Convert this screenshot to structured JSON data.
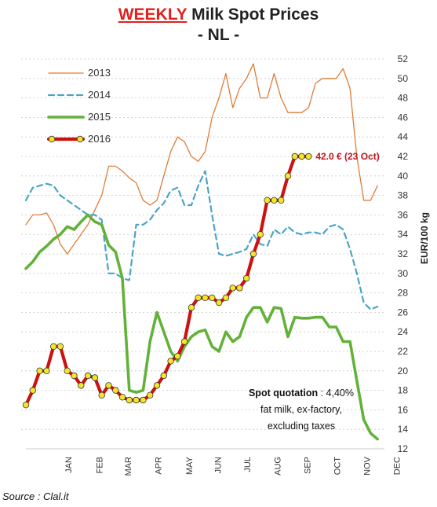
{
  "title": {
    "emphasis": "WEEKLY",
    "rest": "Milk Spot Prices",
    "subtitle": "- NL -"
  },
  "source": "Source : Clal.it",
  "chart_data": {
    "type": "line",
    "ylabel": "EUR/100 kg",
    "ylim": [
      12,
      52
    ],
    "yticks": [
      12,
      14,
      16,
      18,
      20,
      22,
      24,
      26,
      28,
      30,
      32,
      34,
      36,
      38,
      40,
      42,
      44,
      46,
      48,
      50,
      52
    ],
    "y_axis_position": "right",
    "grid": "horizontal dashed",
    "legend_position": "top-left",
    "months": [
      "JAN",
      "FEB",
      "MAR",
      "APR",
      "MAY",
      "JUN",
      "JUL",
      "AUG",
      "SEP",
      "OCT",
      "NOV",
      "DEC"
    ],
    "x_unit": "week",
    "xlim": [
      1,
      53
    ],
    "series": [
      {
        "name": "2013",
        "color": "#e07b39",
        "style": "solid-thin",
        "x": [
          1,
          2,
          3,
          4,
          5,
          6,
          7,
          8,
          9,
          10,
          11,
          12,
          13,
          14,
          15,
          16,
          17,
          18,
          19,
          20,
          21,
          22,
          23,
          24,
          25,
          26,
          27,
          28,
          29,
          30,
          31,
          32,
          33,
          34,
          35,
          36,
          37,
          38,
          39,
          40,
          41,
          42,
          43,
          44,
          45,
          46,
          47,
          48,
          49,
          50,
          51,
          52
        ],
        "values": [
          35,
          36,
          36,
          36.2,
          35,
          33,
          32,
          33,
          34,
          35,
          36.5,
          38,
          41,
          41,
          40.5,
          39.8,
          39.3,
          37.5,
          37,
          37.5,
          40,
          42.5,
          44,
          43.5,
          42,
          41.5,
          42.5,
          46,
          48,
          50.5,
          47,
          49,
          50,
          51.5,
          48,
          48,
          50.5,
          48,
          46.5,
          46.5,
          46.5,
          47,
          49.5,
          50,
          50,
          50,
          51,
          49,
          42,
          37.5,
          37.5,
          39
        ]
      },
      {
        "name": "2014",
        "color": "#4aa3c8",
        "style": "dashed",
        "x": [
          1,
          2,
          3,
          4,
          5,
          6,
          7,
          8,
          9,
          10,
          11,
          12,
          13,
          14,
          15,
          16,
          17,
          18,
          19,
          20,
          21,
          22,
          23,
          24,
          25,
          26,
          27,
          28,
          29,
          30,
          31,
          32,
          33,
          34,
          35,
          36,
          37,
          38,
          39,
          40,
          41,
          42,
          43,
          44,
          45,
          46,
          47,
          48,
          49,
          50,
          51,
          52
        ],
        "values": [
          37.5,
          38.8,
          39,
          39.2,
          39,
          38,
          37.5,
          37,
          36.5,
          36,
          36,
          35.5,
          30,
          30,
          29.5,
          29.3,
          35,
          35,
          35.5,
          36.5,
          37.2,
          38.5,
          38.8,
          37,
          37,
          39,
          40.5,
          36,
          32,
          31.8,
          32,
          32.2,
          32.5,
          34,
          33,
          32.8,
          34.5,
          34,
          34.8,
          34.2,
          34,
          34.2,
          34.2,
          34,
          34.8,
          35,
          34.5,
          32.5,
          30,
          27,
          26.3,
          26.6
        ]
      },
      {
        "name": "2015",
        "color": "#62b23a",
        "style": "solid-thick",
        "x": [
          1,
          2,
          3,
          4,
          5,
          6,
          7,
          8,
          9,
          10,
          11,
          12,
          13,
          14,
          15,
          16,
          17,
          18,
          19,
          20,
          21,
          22,
          23,
          24,
          25,
          26,
          27,
          28,
          29,
          30,
          31,
          32,
          33,
          34,
          35,
          36,
          37,
          38,
          39,
          40,
          41,
          42,
          43,
          44,
          45,
          46,
          47,
          48,
          49,
          50,
          51,
          52
        ],
        "values": [
          30.5,
          31.2,
          32.2,
          32.8,
          33.5,
          34,
          34.8,
          34.5,
          35.3,
          36,
          35.3,
          35,
          32.9,
          32.2,
          29.5,
          18,
          17.8,
          18,
          23,
          26,
          24,
          22,
          21,
          22.5,
          23.5,
          24,
          24.2,
          22.5,
          22,
          24,
          23,
          23.5,
          25.5,
          26.5,
          26.5,
          25,
          26.5,
          26.4,
          23.5,
          25.5,
          25.4,
          25.4,
          25.5,
          25.5,
          24.5,
          24.5,
          23,
          23,
          19,
          15,
          13.6,
          13
        ]
      },
      {
        "name": "2016",
        "color": "#cc1111",
        "marker_color": "#f5e52a",
        "style": "solid-thick-markers",
        "x": [
          1,
          2,
          3,
          4,
          5,
          6,
          7,
          8,
          9,
          10,
          11,
          12,
          13,
          14,
          15,
          16,
          17,
          18,
          19,
          20,
          21,
          22,
          23,
          24,
          25,
          26,
          27,
          28,
          29,
          30,
          31,
          32,
          33,
          34,
          35,
          36,
          37,
          38,
          39,
          40,
          41,
          42
        ],
        "values": [
          16.5,
          18,
          20,
          20,
          22.5,
          22.5,
          20,
          19.5,
          18.5,
          19.5,
          19.3,
          17.5,
          18.5,
          18,
          17.3,
          17,
          17,
          17,
          17.5,
          18.5,
          19.5,
          21,
          21.5,
          23,
          26.5,
          27.5,
          27.5,
          27.5,
          27,
          27.5,
          28.5,
          28.5,
          29.5,
          32,
          34,
          37.5,
          37.5,
          37.5,
          40,
          42,
          42,
          42
        ]
      }
    ],
    "annotations": [
      {
        "text": "42.0 € (23 Oct)",
        "series": "2016",
        "x": 42,
        "y": 42
      }
    ],
    "note": [
      "Spot quotation",
      " : 4,40%",
      "fat milk, ex-factory,",
      "excluding  taxes"
    ]
  }
}
